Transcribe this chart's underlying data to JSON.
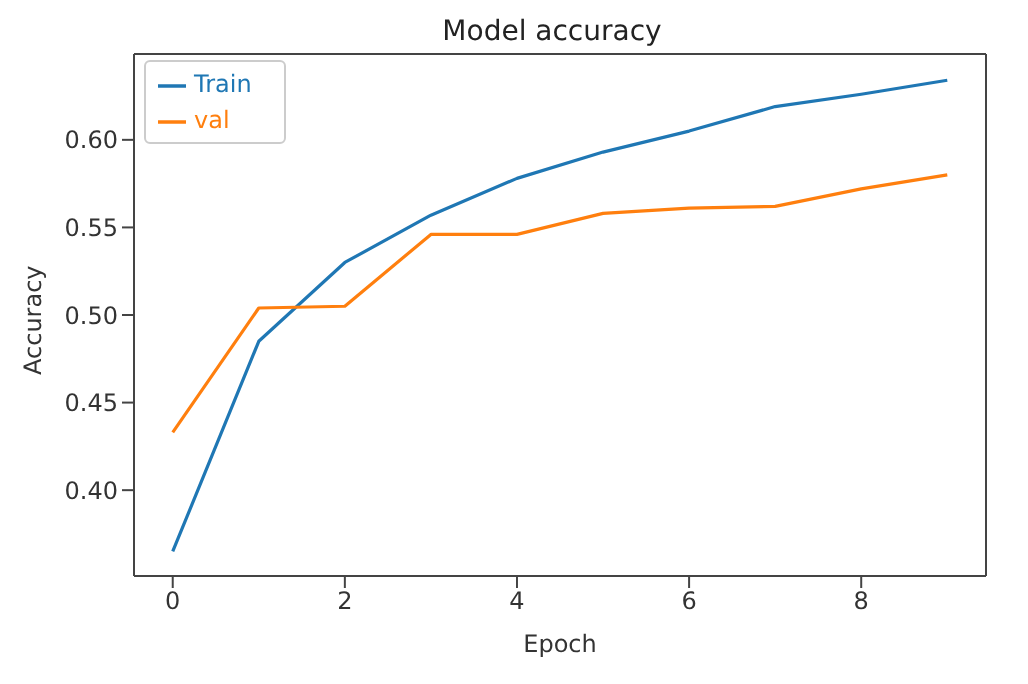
{
  "chart_data": {
    "type": "line",
    "title": "Model accuracy",
    "xlabel": "Epoch",
    "ylabel": "Accuracy",
    "x": [
      0,
      1,
      2,
      3,
      4,
      5,
      6,
      7,
      8,
      9
    ],
    "series": [
      {
        "name": "Train",
        "color": "#1f77b4",
        "values": [
          0.365,
          0.485,
          0.53,
          0.557,
          0.578,
          0.593,
          0.605,
          0.619,
          0.626,
          0.634
        ]
      },
      {
        "name": "val",
        "color": "#ff7f0e",
        "values": [
          0.433,
          0.504,
          0.505,
          0.546,
          0.546,
          0.558,
          0.561,
          0.562,
          0.572,
          0.58
        ]
      }
    ],
    "xlim": [
      -0.45,
      9.45
    ],
    "xticks": [
      0,
      2,
      4,
      6,
      8
    ],
    "ylim": [
      0.351,
      0.649
    ],
    "yticks": [
      {
        "value": 0.4,
        "label": "0.40"
      },
      {
        "value": 0.45,
        "label": "0.45"
      },
      {
        "value": 0.5,
        "label": "0.50"
      },
      {
        "value": 0.55,
        "label": "0.55"
      },
      {
        "value": 0.6,
        "label": "0.60"
      }
    ],
    "grid": false,
    "legend": "top left",
    "marker": "none",
    "line_style": "solid"
  }
}
